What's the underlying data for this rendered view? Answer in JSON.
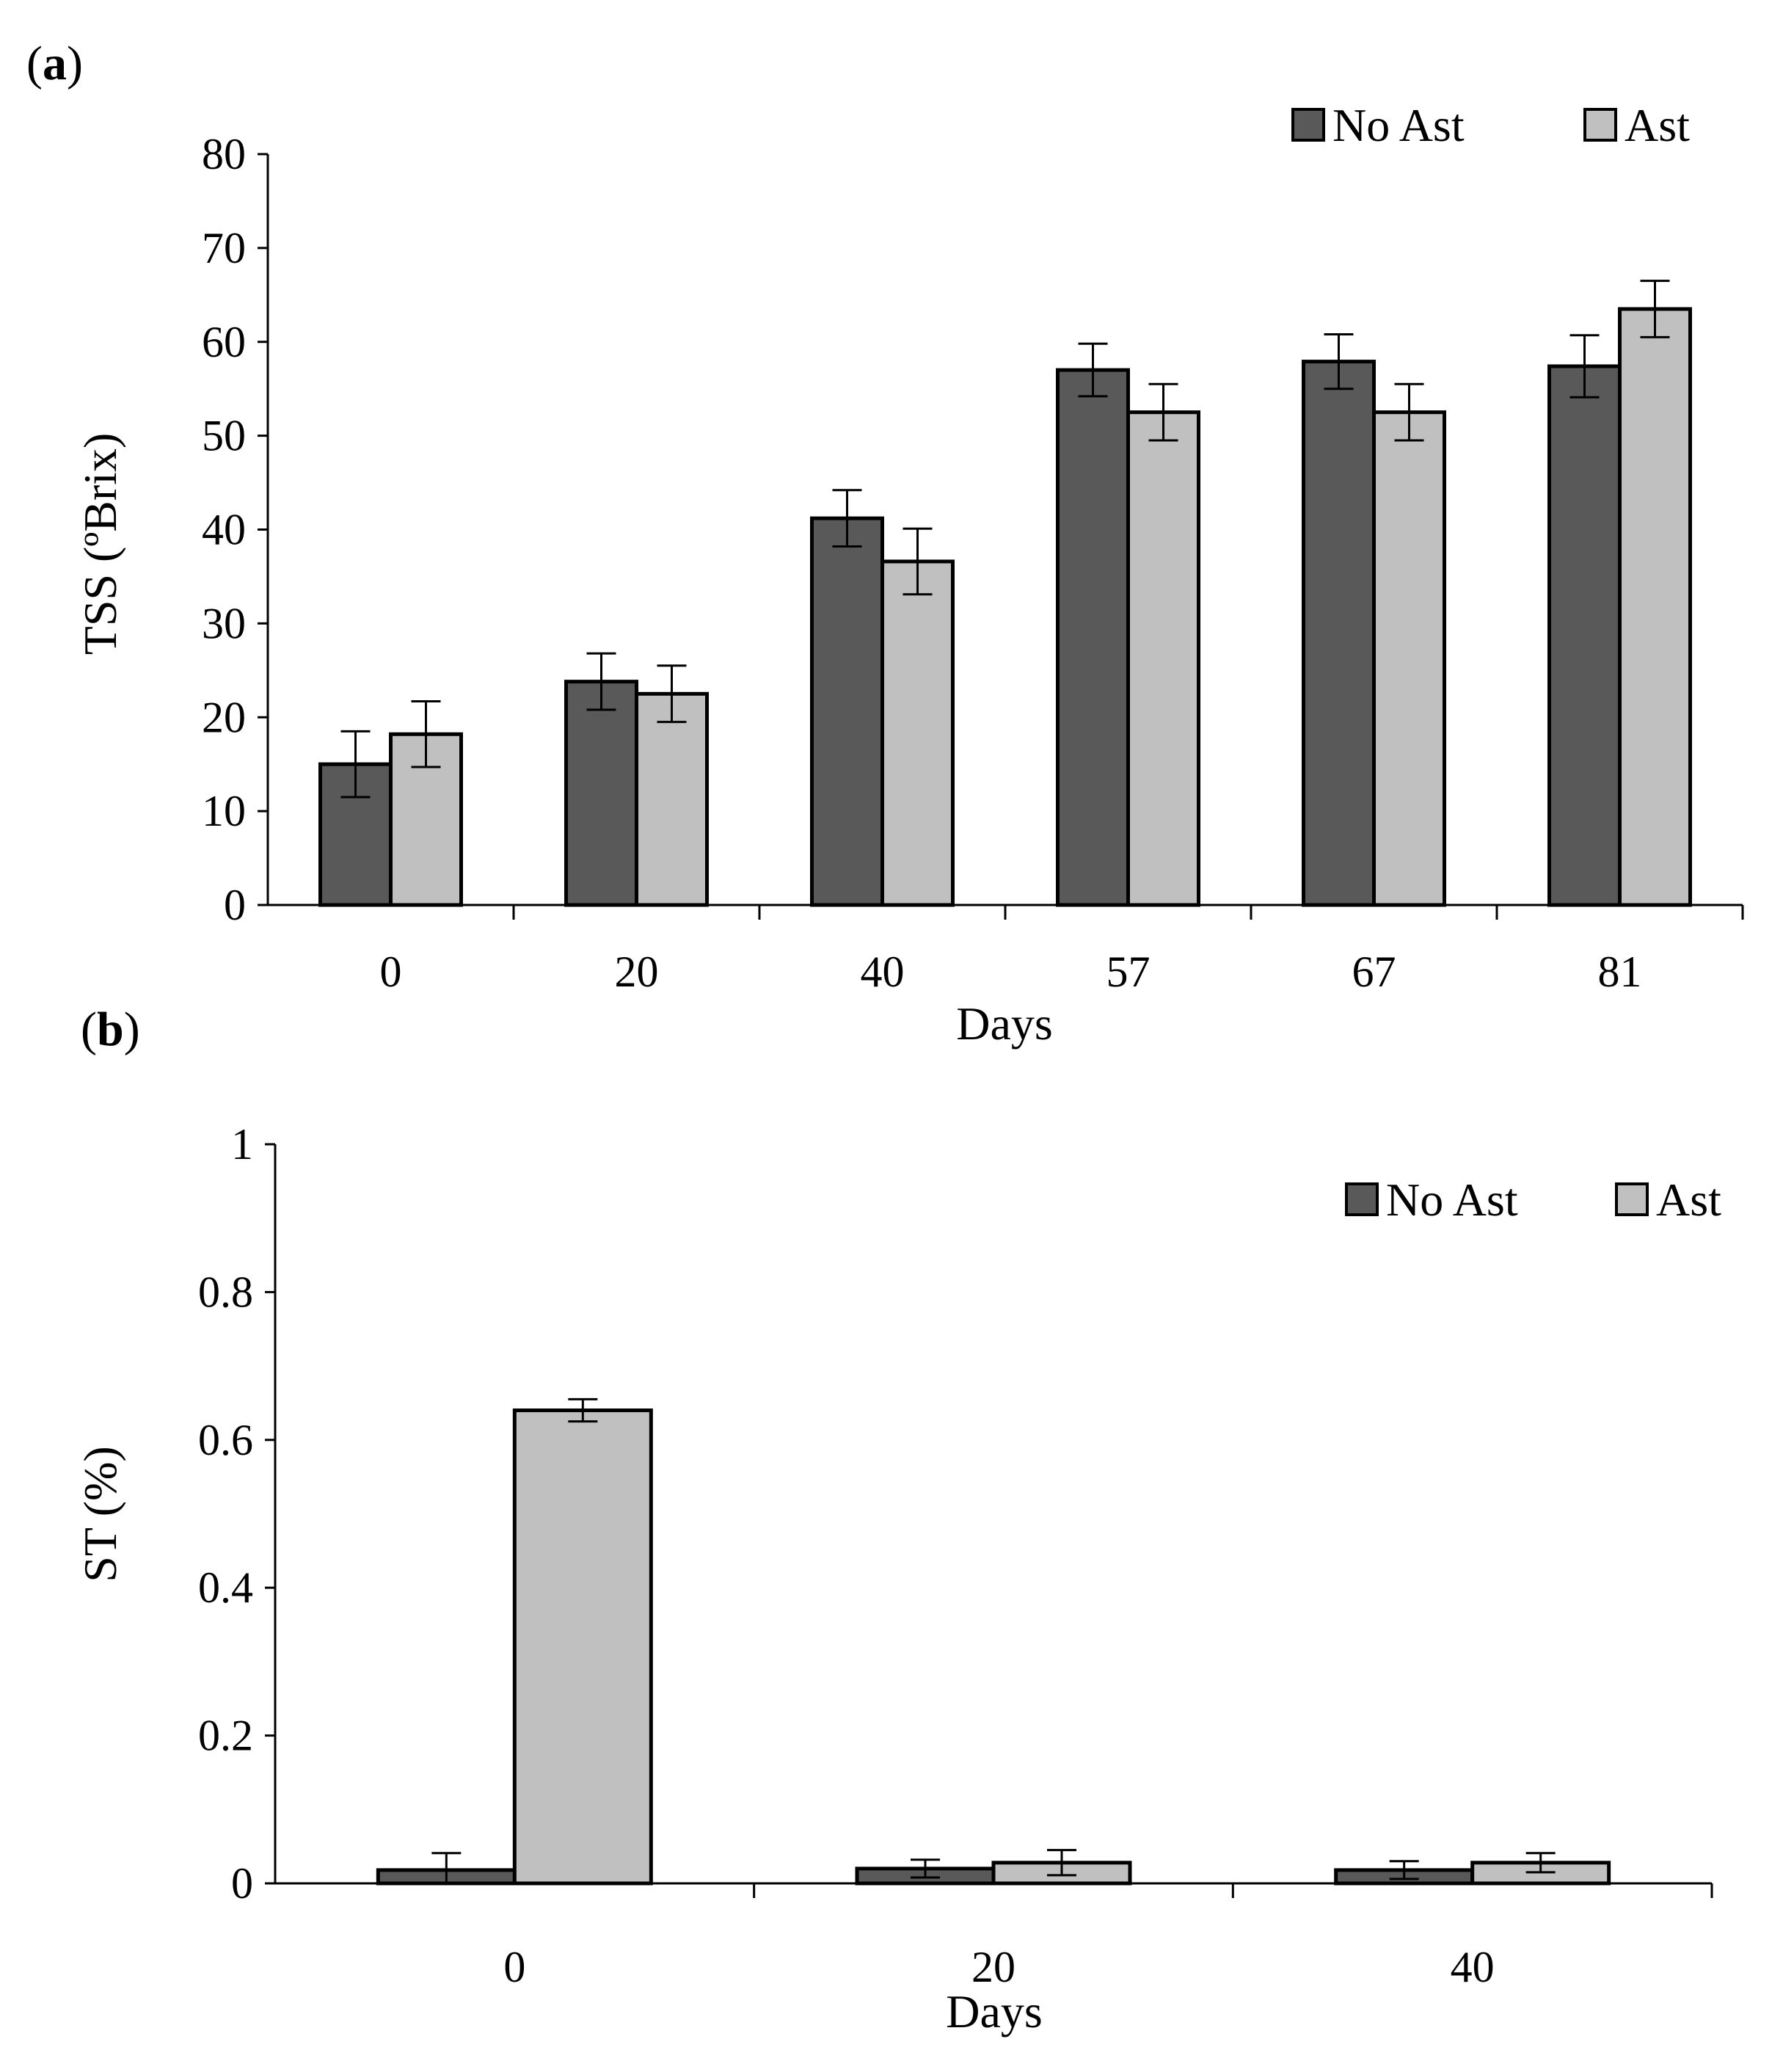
{
  "chart_data": [
    {
      "panel": "(a)",
      "type": "bar",
      "title": "",
      "xlabel": "Days",
      "ylabel": "TSS (ºBrix)",
      "categories": [
        "0",
        "20",
        "40",
        "57",
        "67",
        "81"
      ],
      "ylim": [
        0,
        80
      ],
      "yticks": [
        "0",
        "10",
        "20",
        "30",
        "40",
        "50",
        "60",
        "70",
        "80"
      ],
      "grid": false,
      "legend_position": "top-right",
      "series": [
        {
          "name": "No Ast",
          "color": "#595959",
          "values": [
            15.0,
            23.8,
            41.2,
            57.0,
            57.9,
            57.4
          ],
          "errors": [
            3.5,
            3.0,
            3.0,
            2.8,
            2.9,
            3.3
          ]
        },
        {
          "name": "Ast",
          "color": "#c0c0c0",
          "values": [
            18.2,
            22.5,
            36.6,
            52.5,
            52.5,
            63.5
          ],
          "errors": [
            3.5,
            3.0,
            3.5,
            3.0,
            3.0,
            3.0
          ]
        }
      ]
    },
    {
      "panel": "(b)",
      "type": "bar",
      "title": "",
      "xlabel": "Days",
      "ylabel": "ST (%)",
      "categories": [
        "0",
        "20",
        "40"
      ],
      "ylim": [
        0,
        1
      ],
      "yticks": [
        "0",
        "0.2",
        "0.4",
        "0.6",
        "0.8",
        "1"
      ],
      "grid": false,
      "legend_position": "top-right",
      "series": [
        {
          "name": "No Ast",
          "color": "#595959",
          "values": [
            0.018,
            0.02,
            0.018
          ],
          "errors": [
            0.023,
            0.012,
            0.012
          ]
        },
        {
          "name": "Ast",
          "color": "#c0c0c0",
          "values": [
            0.64,
            0.028,
            0.028
          ],
          "errors": [
            0.015,
            0.017,
            0.013
          ]
        }
      ]
    }
  ]
}
